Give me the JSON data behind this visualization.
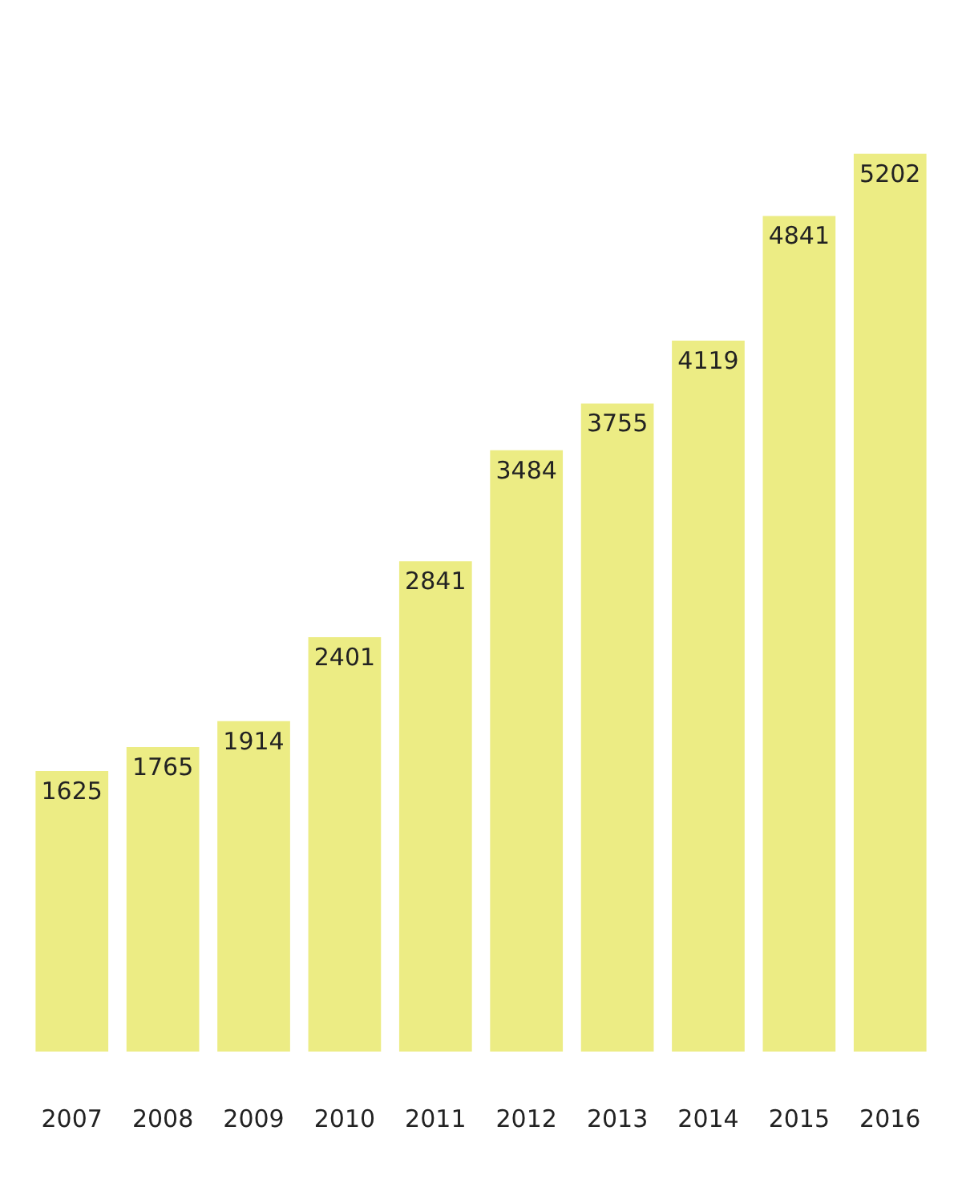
{
  "chart_data": {
    "type": "bar",
    "categories": [
      "2007",
      "2008",
      "2009",
      "2010",
      "2011",
      "2012",
      "2013",
      "2014",
      "2015",
      "2016"
    ],
    "values": [
      1625,
      1765,
      1914,
      2401,
      2841,
      3484,
      3755,
      4119,
      4841,
      5202
    ],
    "color": "#ecec84",
    "data_labels": true,
    "tick_labels": "x",
    "grid": false,
    "legend": false
  }
}
